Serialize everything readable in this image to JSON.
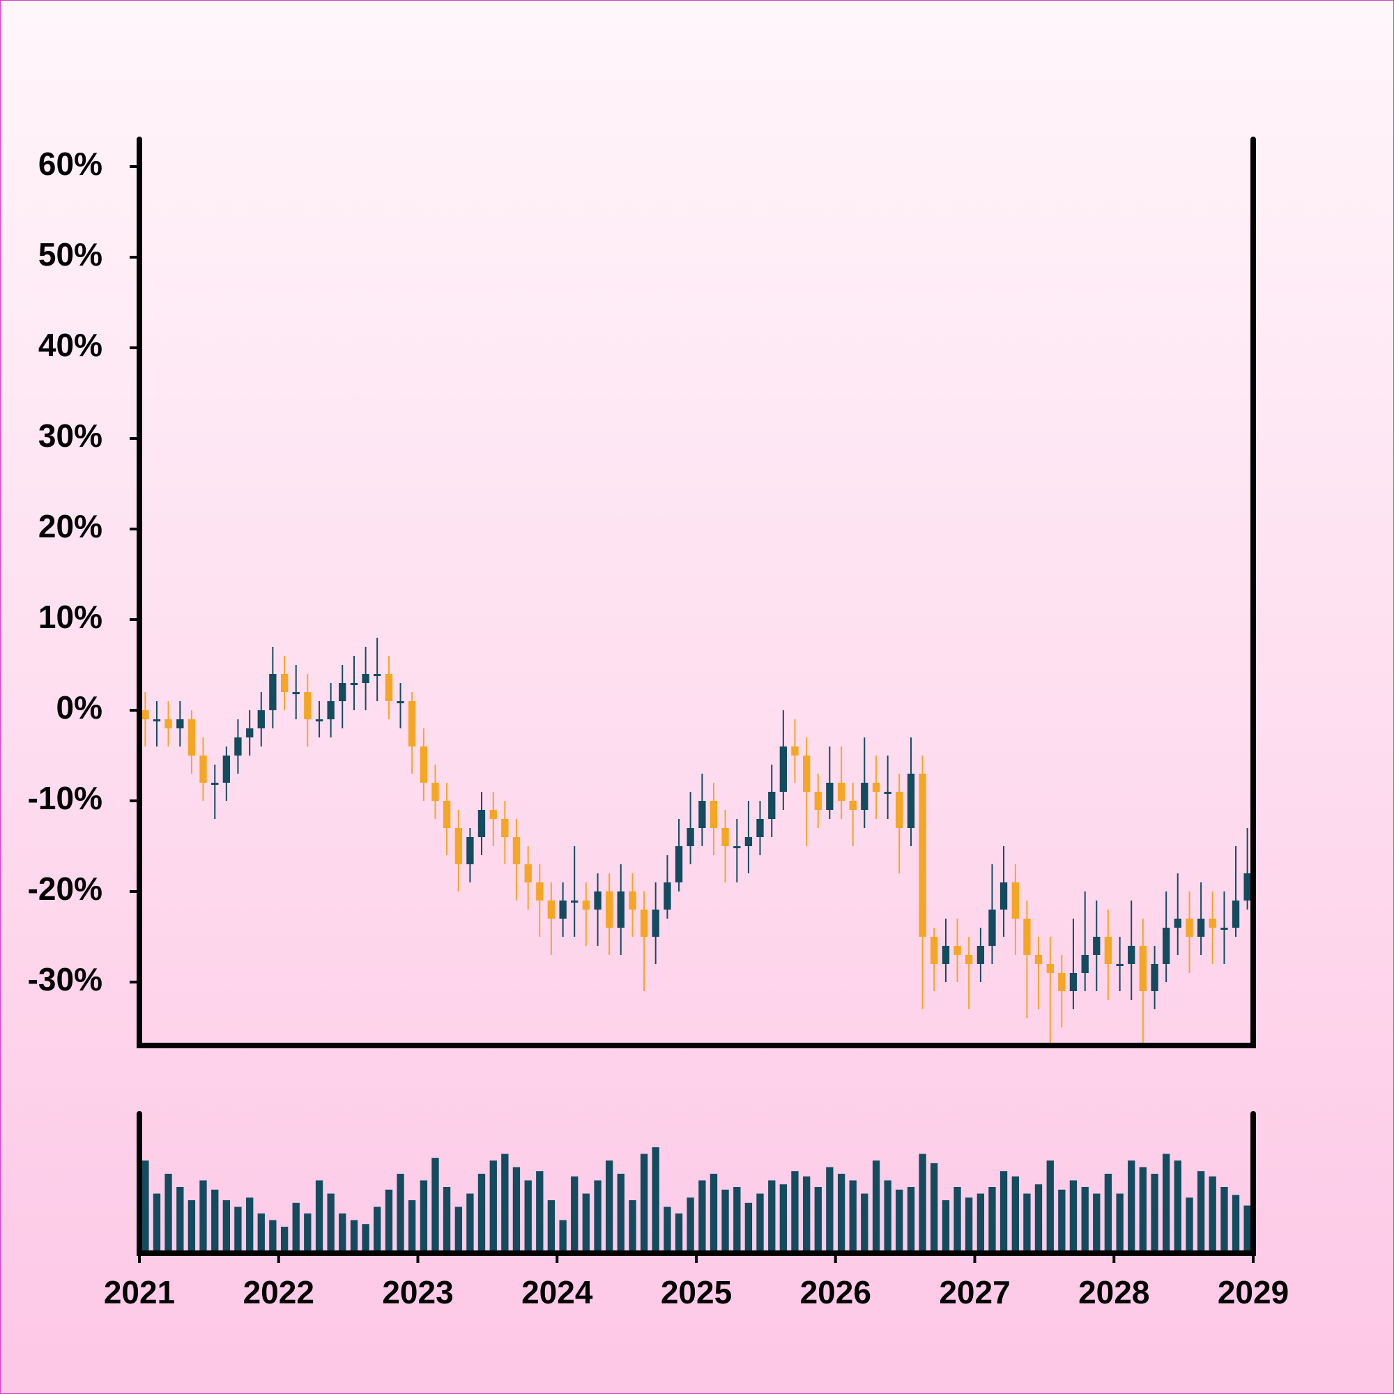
{
  "chart_data": {
    "type": "candlestick",
    "x": [
      2021.042,
      2021.125,
      2021.208,
      2021.292,
      2021.375,
      2021.458,
      2021.542,
      2021.625,
      2021.708,
      2021.792,
      2021.875,
      2021.958,
      2022.042,
      2022.125,
      2022.208,
      2022.292,
      2022.375,
      2022.458,
      2022.542,
      2022.625,
      2022.708,
      2022.792,
      2022.875,
      2022.958,
      2023.042,
      2023.125,
      2023.208,
      2023.292,
      2023.375,
      2023.458,
      2023.542,
      2023.625,
      2023.708,
      2023.792,
      2023.875,
      2023.958,
      2024.042,
      2024.125,
      2024.208,
      2024.292,
      2024.375,
      2024.458,
      2024.542,
      2024.625,
      2024.708,
      2024.792,
      2024.875,
      2024.958,
      2025.042,
      2025.125,
      2025.208,
      2025.292,
      2025.375,
      2025.458,
      2025.542,
      2025.625,
      2025.708,
      2025.792,
      2025.875,
      2025.958,
      2026.042,
      2026.125,
      2026.208,
      2026.292,
      2026.375,
      2026.458,
      2026.542,
      2026.625,
      2026.708,
      2026.792,
      2026.875,
      2026.958,
      2027.042,
      2027.125,
      2027.208,
      2027.292,
      2027.375,
      2027.458,
      2027.542,
      2027.625,
      2027.708,
      2027.792,
      2027.875,
      2027.958,
      2028.042,
      2028.125,
      2028.208,
      2028.292,
      2028.375,
      2028.458,
      2028.542,
      2028.625,
      2028.708,
      2028.792,
      2028.875,
      2028.958
    ],
    "open": [
      0,
      -1,
      -1,
      -2,
      -1,
      -5,
      -8,
      -8,
      -5,
      -3,
      -2,
      0,
      4,
      2,
      2,
      -1,
      -1,
      1,
      3,
      3,
      4,
      4,
      1,
      1,
      -4,
      -8,
      -10,
      -13,
      -17,
      -14,
      -11,
      -12,
      -14,
      -17,
      -19,
      -21,
      -23,
      -21,
      -21,
      -22,
      -20,
      -24,
      -20,
      -22,
      -25,
      -22,
      -19,
      -15,
      -13,
      -10,
      -13,
      -15,
      -15,
      -14,
      -12,
      -9,
      -4,
      -5,
      -9,
      -11,
      -8,
      -10,
      -11,
      -8,
      -9,
      -9,
      -13,
      -7,
      -25,
      -28,
      -26,
      -27,
      -28,
      -26,
      -22,
      -19,
      -23,
      -27,
      -28,
      -29,
      -31,
      -29,
      -27,
      -25,
      -28,
      -28,
      -26,
      -31,
      -28,
      -24,
      -23,
      -25,
      -23,
      -24,
      -24,
      -21
    ],
    "high": [
      2,
      1,
      1,
      1,
      0,
      -3,
      -6,
      -4,
      -1,
      0,
      2,
      7,
      6,
      5,
      4,
      1,
      3,
      5,
      6,
      7,
      8,
      6,
      3,
      2,
      -2,
      -6,
      -8,
      -11,
      -13,
      -9,
      -9,
      -10,
      -12,
      -15,
      -17,
      -19,
      -19,
      -15,
      -19,
      -18,
      -18,
      -17,
      -18,
      -20,
      -19,
      -16,
      -12,
      -9,
      -7,
      -8,
      -11,
      -12,
      -10,
      -10,
      -6,
      0,
      -1,
      -3,
      -7,
      -4,
      -4,
      -8,
      -3,
      -5,
      -5,
      -7,
      -3,
      -5,
      -24,
      -23,
      -23,
      -25,
      -24,
      -17,
      -15,
      -17,
      -21,
      -25,
      -25,
      -27,
      -23,
      -20,
      -21,
      -22,
      -25,
      -21,
      -23,
      -26,
      -20,
      -18,
      -20,
      -19,
      -20,
      -20,
      -15,
      -13
    ],
    "low": [
      -4,
      -4,
      -4,
      -4,
      -7,
      -10,
      -12,
      -10,
      -7,
      -5,
      -4,
      -2,
      0,
      -1,
      -4,
      -3,
      -3,
      -2,
      0,
      0,
      1,
      -1,
      -2,
      -7,
      -10,
      -12,
      -16,
      -20,
      -19,
      -16,
      -15,
      -17,
      -21,
      -22,
      -25,
      -27,
      -25,
      -25,
      -26,
      -26,
      -27,
      -27,
      -25,
      -31,
      -28,
      -23,
      -20,
      -17,
      -15,
      -16,
      -19,
      -19,
      -18,
      -16,
      -14,
      -11,
      -8,
      -15,
      -13,
      -12,
      -12,
      -15,
      -13,
      -12,
      -12,
      -18,
      -15,
      -33,
      -31,
      -30,
      -30,
      -33,
      -30,
      -28,
      -25,
      -27,
      -34,
      -33,
      -37,
      -35,
      -33,
      -31,
      -31,
      -32,
      -31,
      -32,
      -37,
      -33,
      -30,
      -27,
      -29,
      -27,
      -28,
      -28,
      -25,
      -22
    ],
    "close": [
      -1,
      -1,
      -2,
      -1,
      -5,
      -8,
      -8,
      -5,
      -3,
      -2,
      0,
      4,
      2,
      2,
      -1,
      -1,
      1,
      3,
      3,
      4,
      4,
      1,
      1,
      -4,
      -8,
      -10,
      -13,
      -17,
      -14,
      -11,
      -12,
      -14,
      -17,
      -19,
      -21,
      -23,
      -21,
      -21,
      -22,
      -20,
      -24,
      -20,
      -22,
      -25,
      -22,
      -19,
      -15,
      -13,
      -10,
      -13,
      -15,
      -15,
      -14,
      -12,
      -9,
      -4,
      -5,
      -9,
      -11,
      -8,
      -10,
      -11,
      -8,
      -9,
      -9,
      -13,
      -7,
      -25,
      -28,
      -26,
      -27,
      -28,
      -26,
      -22,
      -19,
      -23,
      -27,
      -28,
      -29,
      -31,
      -29,
      -27,
      -25,
      -28,
      -28,
      -26,
      -31,
      -28,
      -24,
      -23,
      -25,
      -23,
      -24,
      -24,
      -21,
      -18
    ],
    "volume": [
      70,
      45,
      60,
      50,
      40,
      55,
      48,
      40,
      35,
      42,
      30,
      25,
      20,
      38,
      30,
      55,
      45,
      30,
      25,
      22,
      35,
      48,
      60,
      40,
      55,
      72,
      50,
      35,
      45,
      60,
      70,
      75,
      65,
      55,
      62,
      40,
      25,
      58,
      45,
      55,
      70,
      60,
      40,
      75,
      80,
      35,
      30,
      42,
      55,
      60,
      48,
      50,
      38,
      45,
      55,
      52,
      62,
      58,
      50,
      65,
      60,
      55,
      45,
      70,
      55,
      48,
      50,
      75,
      68,
      40,
      50,
      42,
      45,
      50,
      62,
      58,
      45,
      52,
      70,
      48,
      55,
      50,
      45,
      60,
      45,
      70,
      65,
      60,
      75,
      70,
      42,
      62,
      58,
      50,
      44,
      36
    ],
    "up_color": "#134b5f",
    "down_color": "#f5a623",
    "volume_color": "#134b5f",
    "xlim": [
      2021,
      2029
    ],
    "xticks": [
      2021,
      2022,
      2023,
      2024,
      2025,
      2026,
      2027,
      2028,
      2029
    ],
    "ylim": [
      -37,
      63
    ],
    "yticks": [
      {
        "value": -30,
        "label": "-30%"
      },
      {
        "value": -20,
        "label": "-20%"
      },
      {
        "value": -10,
        "label": "-10%"
      },
      {
        "value": 0,
        "label": "0%"
      },
      {
        "value": 10,
        "label": "10%"
      },
      {
        "value": 20,
        "label": "20%"
      },
      {
        "value": 30,
        "label": "30%"
      },
      {
        "value": 40,
        "label": "40%"
      },
      {
        "value": 50,
        "label": "50%"
      },
      {
        "value": 60,
        "label": "60%"
      }
    ],
    "volume_ylim": [
      0,
      100
    ]
  }
}
